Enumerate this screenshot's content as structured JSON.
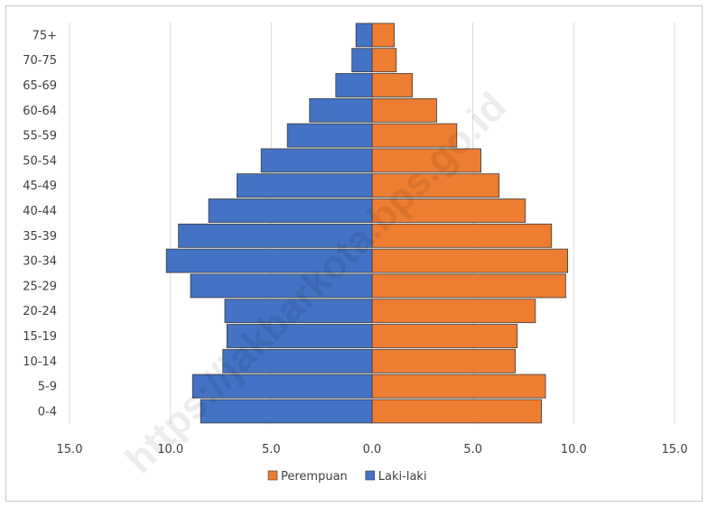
{
  "chart_data": {
    "type": "bar",
    "orientation": "horizontal-population-pyramid",
    "categories": [
      "0-4",
      "5-9",
      "10-14",
      "15-19",
      "20-24",
      "25-29",
      "30-34",
      "35-39",
      "40-44",
      "45-49",
      "50-54",
      "55-59",
      "60-64",
      "65-69",
      "70-75",
      "75+"
    ],
    "category_labels": [
      "0-4",
      "5-9",
      "10-14",
      "15-19",
      "20-24",
      "25-29",
      "30-34",
      "35-39",
      "40-44",
      "45-49",
      "50-54",
      "55-59",
      "60-64",
      "65-69",
      "70-75",
      "75+"
    ],
    "series": [
      {
        "name": "Perempuan",
        "color": "#ed7d31",
        "side": "right",
        "values": [
          8.4,
          8.6,
          7.1,
          7.2,
          8.1,
          9.6,
          9.7,
          8.9,
          7.6,
          6.3,
          5.4,
          4.2,
          3.2,
          2.0,
          1.2,
          1.1
        ]
      },
      {
        "name": "Laki-laki",
        "color": "#4472c4",
        "side": "left",
        "values": [
          8.5,
          8.9,
          7.4,
          7.2,
          7.3,
          9.0,
          10.2,
          9.6,
          8.1,
          6.7,
          5.5,
          4.2,
          3.1,
          1.8,
          1.0,
          0.8
        ]
      }
    ],
    "xlim": [
      -15,
      15
    ],
    "x_tick_values": [
      -15,
      -10,
      -5,
      0,
      5,
      10,
      15
    ],
    "x_tick_labels": [
      "15.0",
      "10.0",
      "5.0",
      "0.0",
      "5.0",
      "10.0",
      "15.0"
    ],
    "gridlines": "vertical",
    "legend": {
      "position": "bottom",
      "items": [
        "Perempuan",
        "Laki-laki"
      ]
    },
    "title": "",
    "xlabel": "",
    "ylabel": ""
  },
  "watermark": "https://jakbarkota.bps.go.id"
}
